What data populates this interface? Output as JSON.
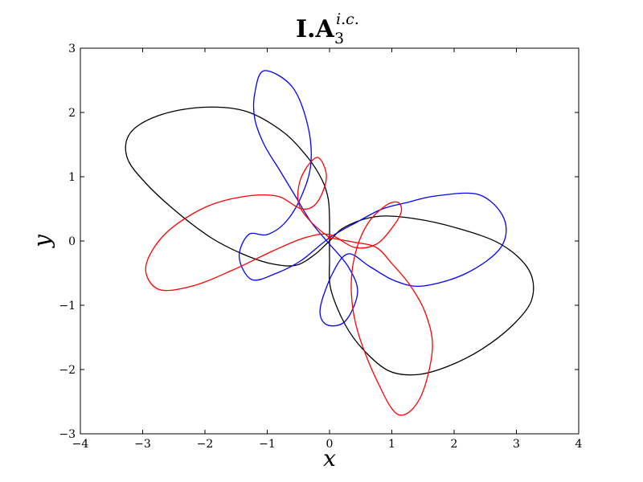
{
  "chart_data": {
    "type": "line",
    "title": {
      "main": "I.A",
      "subscript": "3",
      "superscript": "i.c."
    },
    "xlabel": "x",
    "ylabel": "y",
    "xlim": [
      -4,
      4
    ],
    "ylim": [
      -3,
      3
    ],
    "xticks": [
      -4,
      -3,
      -2,
      -1,
      0,
      1,
      2,
      3,
      4
    ],
    "yticks": [
      -3,
      -2,
      -1,
      0,
      1,
      2,
      3
    ],
    "xtick_labels": [
      "−4",
      "−3",
      "−2",
      "−1",
      "0",
      "1",
      "2",
      "3",
      "4"
    ],
    "ytick_labels": [
      "−3",
      "−2",
      "−1",
      "0",
      "1",
      "2",
      "3"
    ],
    "grid": false,
    "legend": "none",
    "series": [
      {
        "color": "#000000",
        "x": [
          0.0,
          0.0,
          -0.02,
          -0.12,
          -0.35,
          -0.75,
          -1.35,
          -2.05,
          -2.75,
          -3.2,
          -3.25,
          -2.95,
          -2.45,
          -1.9,
          -1.4,
          -0.95,
          -0.55,
          -0.25,
          0.0,
          0.25,
          0.75,
          1.35,
          2.05,
          2.75,
          3.2,
          3.25,
          2.95,
          2.45,
          1.9,
          1.4,
          0.95,
          0.55,
          0.25,
          0.02,
          0.0
        ],
        "y": [
          0.05,
          0.3,
          0.65,
          0.95,
          1.3,
          1.7,
          2.02,
          2.08,
          1.95,
          1.68,
          1.3,
          0.9,
          0.45,
          0.05,
          -0.2,
          -0.35,
          -0.38,
          -0.22,
          0.0,
          0.22,
          0.38,
          0.35,
          0.2,
          -0.05,
          -0.45,
          -0.9,
          -1.3,
          -1.68,
          -1.95,
          -2.08,
          -2.02,
          -1.7,
          -1.3,
          -0.75,
          -0.3
        ]
      },
      {
        "color": "#0000ff",
        "x": [
          0.0,
          -0.3,
          -0.55,
          -0.8,
          -1.05,
          -1.2,
          -1.2,
          -1.05,
          -0.6,
          -0.35,
          -0.3,
          -0.45,
          -0.7,
          -1.0,
          -1.3,
          -1.45,
          -1.25,
          -0.85,
          -0.45,
          0.0,
          0.45,
          0.85,
          1.25,
          1.7,
          2.4,
          2.8,
          2.75,
          2.2,
          1.5,
          1.05,
          0.65,
          0.3,
          0.05,
          -0.15,
          -0.05,
          0.25,
          0.45,
          0.3,
          0.0
        ],
        "y": [
          -0.05,
          0.3,
          0.7,
          1.1,
          1.5,
          1.9,
          2.3,
          2.65,
          2.4,
          1.8,
          1.2,
          0.7,
          0.3,
          0.1,
          0.1,
          -0.25,
          -0.6,
          -0.5,
          -0.3,
          0.05,
          0.3,
          0.5,
          0.6,
          0.7,
          0.72,
          0.35,
          -0.1,
          -0.5,
          -0.7,
          -0.62,
          -0.4,
          -0.2,
          -0.5,
          -1.05,
          -1.3,
          -1.25,
          -0.8,
          -0.4,
          -0.05
        ]
      },
      {
        "color": "#ff0000",
        "x": [
          0.0,
          -0.3,
          -0.5,
          -0.45,
          -0.2,
          -0.05,
          -0.2,
          -0.45,
          -0.85,
          -1.45,
          -2.05,
          -2.65,
          -2.95,
          -2.75,
          -2.2,
          -1.55,
          -0.9,
          -0.4,
          0.0,
          0.4,
          0.75,
          1.0,
          1.15,
          1.1,
          0.9,
          0.6,
          0.4,
          0.35,
          0.45,
          0.75,
          1.1,
          1.45,
          1.65,
          1.55,
          1.3,
          1.0,
          0.75,
          0.4,
          0.0
        ],
        "y": [
          0.05,
          0.3,
          0.6,
          1.0,
          1.3,
          1.0,
          0.6,
          0.5,
          0.7,
          0.68,
          0.5,
          0.1,
          -0.4,
          -0.75,
          -0.7,
          -0.45,
          -0.15,
          0.05,
          0.1,
          -0.1,
          -0.05,
          0.2,
          0.45,
          0.6,
          0.55,
          0.25,
          -0.25,
          -0.8,
          -1.4,
          -2.15,
          -2.7,
          -2.45,
          -1.7,
          -1.15,
          -0.7,
          -0.35,
          -0.1,
          -0.02,
          0.05
        ]
      }
    ]
  }
}
